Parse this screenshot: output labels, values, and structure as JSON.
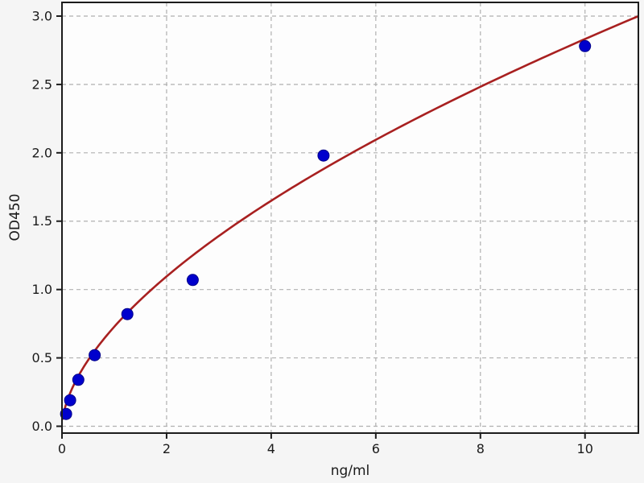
{
  "figure": {
    "background": "#f5f5f5",
    "plot_background": "#fdfdfd"
  },
  "chart_data": {
    "type": "scatter",
    "title": "",
    "xlabel": "ng/ml",
    "ylabel": "OD450",
    "xlim": [
      0,
      11.02
    ],
    "ylim": [
      -0.05,
      3.1
    ],
    "xticks": [
      0,
      2,
      4,
      6,
      8,
      10
    ],
    "yticks": [
      0.0,
      0.5,
      1.0,
      1.5,
      2.0,
      2.5,
      3.0
    ],
    "grid": true,
    "grid_style": "dashed",
    "legend_position": "none",
    "series": [
      {
        "name": "standard-points",
        "type": "scatter",
        "marker": "circle",
        "color": "#0000cd",
        "edge_color": "#00008b",
        "x": [
          0.078,
          0.156,
          0.312,
          0.625,
          1.25,
          2.5,
          5,
          10
        ],
        "y": [
          0.09,
          0.19,
          0.34,
          0.52,
          0.82,
          1.07,
          1.98,
          2.78
        ]
      },
      {
        "name": "fit-curve",
        "type": "line",
        "color": "#a82020",
        "model": "power",
        "model_formula": "OD = a * x^b",
        "a": 0.728,
        "b": 0.59,
        "x_range": [
          0.012,
          11.015
        ]
      }
    ],
    "colors": {
      "grid": "#b0b0b0",
      "axis": "#1c1c1c",
      "text": "#1a1a1a"
    }
  }
}
